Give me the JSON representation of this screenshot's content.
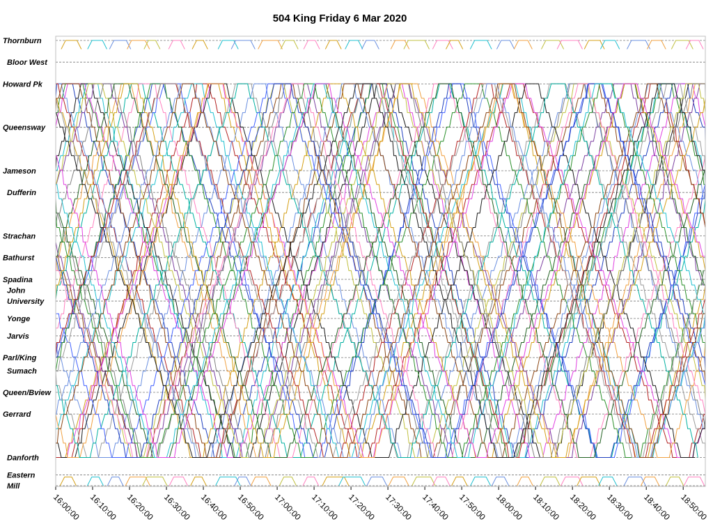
{
  "chart_data": {
    "type": "line",
    "title": "504 King Friday 6 Mar 2020",
    "xlabel": "",
    "ylabel": "",
    "x_range": [
      "16:00:00",
      "18:56:00"
    ],
    "x_ticks": [
      "16:00:00",
      "16:10:00",
      "16:20:00",
      "16:30:00",
      "16:40:00",
      "16:50:00",
      "17:00:00",
      "17:10:00",
      "17:20:00",
      "17:30:00",
      "17:40:00",
      "17:50:00",
      "18:00:00",
      "18:10:00",
      "18:20:00",
      "18:30:00",
      "18:40:00",
      "18:50:00"
    ],
    "stops": [
      {
        "name": "Thornburn",
        "pos": 0.0
      },
      {
        "name": "Bloor West",
        "pos": 0.5
      },
      {
        "name": "Howard Pk",
        "pos": 1.0
      },
      {
        "name": "Queensway",
        "pos": 2.0
      },
      {
        "name": "Jameson",
        "pos": 3.0
      },
      {
        "name": "Dufferin",
        "pos": 3.5
      },
      {
        "name": "Strachan",
        "pos": 4.5
      },
      {
        "name": "Bathurst",
        "pos": 5.0
      },
      {
        "name": "Spadina",
        "pos": 5.5
      },
      {
        "name": "John",
        "pos": 5.75
      },
      {
        "name": "University",
        "pos": 6.0
      },
      {
        "name": "Yonge",
        "pos": 6.4
      },
      {
        "name": "Jarvis",
        "pos": 6.8
      },
      {
        "name": "Parl/King",
        "pos": 7.3
      },
      {
        "name": "Sumach",
        "pos": 7.6
      },
      {
        "name": "Queen/Bview",
        "pos": 8.1
      },
      {
        "name": "Gerrard",
        "pos": 8.6
      },
      {
        "name": "Danforth",
        "pos": 9.6
      },
      {
        "name": "Eastern",
        "pos": 10.0
      },
      {
        "name": "Mill",
        "pos": 10.25
      }
    ],
    "gridlines": "dashed horizontal at each stop",
    "legend": "none",
    "series_count": 46,
    "series_colors": [
      "#1f3fbf",
      "#d4a017",
      "#2a8f2a",
      "#b22222",
      "#20c0d0",
      "#9a9a9a",
      "#e040e0",
      "#6a8fe0",
      "#1a1a1a",
      "#8b4513",
      "#f0a040",
      "#7b3fa0",
      "#00b0a0",
      "#c0c040",
      "#4060ff",
      "#808080",
      "#ff80c0",
      "#206020"
    ]
  }
}
